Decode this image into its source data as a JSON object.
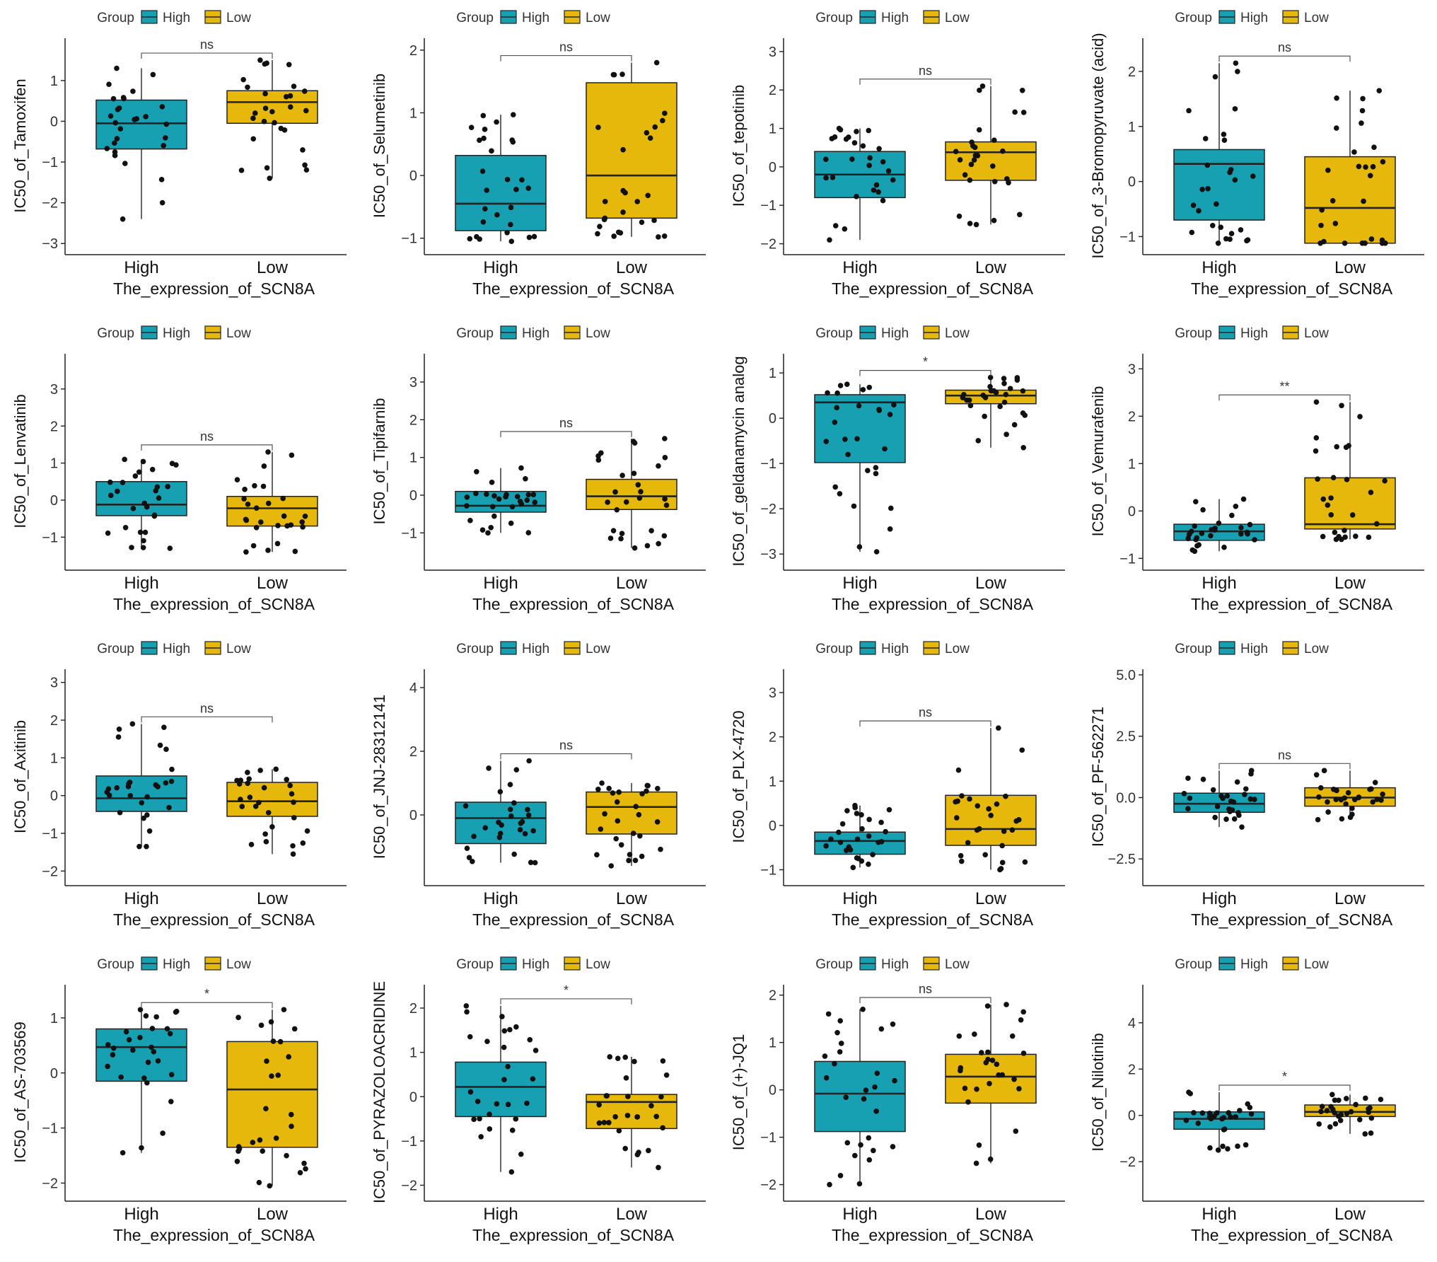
{
  "figure": {
    "legend_title": "Group",
    "groups": [
      "High",
      "Low"
    ],
    "colors": {
      "High": "#17a0b2",
      "Low": "#e5b80b"
    },
    "xlabel": "The_expression_of_SCN8A"
  },
  "chart_data": [
    {
      "type": "box",
      "title": "",
      "ylabel": "IC50_of_Tamoxifen",
      "ylim": [
        -3.1,
        1.9
      ],
      "ticks": [
        "-3",
        "-2",
        "-1",
        "0",
        "1"
      ],
      "sig": "ns",
      "boxes": [
        {
          "group": "High",
          "min": -2.4,
          "q1": -0.68,
          "median": -0.05,
          "q3": 0.52,
          "max": 1.3
        },
        {
          "group": "Low",
          "min": -1.4,
          "q1": -0.05,
          "median": 0.47,
          "q3": 0.75,
          "max": 1.5
        }
      ]
    },
    {
      "type": "box",
      "title": "",
      "ylabel": "IC50_of_Selumetinib",
      "ylim": [
        -1.15,
        2.1
      ],
      "ticks": [
        "-1",
        "0",
        "1",
        "2"
      ],
      "sig": "ns",
      "boxes": [
        {
          "group": "High",
          "min": -1.05,
          "q1": -0.88,
          "median": -0.45,
          "q3": 0.32,
          "max": 0.97
        },
        {
          "group": "Low",
          "min": -0.98,
          "q1": -0.68,
          "median": 0.0,
          "q3": 1.48,
          "max": 1.8
        }
      ]
    },
    {
      "type": "box",
      "title": "",
      "ylabel": "IC50_of_tepotinib",
      "ylim": [
        -2.1,
        3.2
      ],
      "ticks": [
        "-2",
        "-1",
        "0",
        "1",
        "2",
        "3"
      ],
      "sig": "ns",
      "boxes": [
        {
          "group": "High",
          "min": -1.9,
          "q1": -0.8,
          "median": -0.2,
          "q3": 0.4,
          "max": 1.0
        },
        {
          "group": "Low",
          "min": -1.5,
          "q1": -0.35,
          "median": 0.38,
          "q3": 0.65,
          "max": 2.1
        }
      ]
    },
    {
      "type": "box",
      "title": "",
      "ylabel": "IC50_of_3-Bromopyruvate (acid)",
      "ylim": [
        -1.2,
        2.5
      ],
      "ticks": [
        "-1",
        "0",
        "1",
        "2"
      ],
      "sig": "ns",
      "boxes": [
        {
          "group": "High",
          "min": -1.12,
          "q1": -0.7,
          "median": 0.32,
          "q3": 0.58,
          "max": 2.15
        },
        {
          "group": "Low",
          "min": -1.12,
          "q1": -1.12,
          "median": -0.48,
          "q3": 0.45,
          "max": 1.65
        }
      ]
    },
    {
      "type": "box",
      "title": "",
      "ylabel": "IC50_of_Lenvatinib",
      "ylim": [
        -1.7,
        3.8
      ],
      "ticks": [
        "-1",
        "0",
        "1",
        "2",
        "3"
      ],
      "sig": "ns",
      "boxes": [
        {
          "group": "High",
          "min": -1.3,
          "q1": -0.42,
          "median": -0.12,
          "q3": 0.5,
          "max": 1.1
        },
        {
          "group": "Low",
          "min": -1.4,
          "q1": -0.7,
          "median": -0.22,
          "q3": 0.1,
          "max": 1.3
        }
      ]
    },
    {
      "type": "box",
      "title": "",
      "ylabel": "IC50_of_Tipifarnib",
      "ylim": [
        -1.8,
        3.6
      ],
      "ticks": [
        "-1",
        "0",
        "1",
        "2",
        "3"
      ],
      "sig": "ns",
      "boxes": [
        {
          "group": "High",
          "min": -1.0,
          "q1": -0.45,
          "median": -0.28,
          "q3": 0.1,
          "max": 0.72
        },
        {
          "group": "Low",
          "min": -1.4,
          "q1": -0.38,
          "median": -0.03,
          "q3": 0.42,
          "max": 1.5
        }
      ]
    },
    {
      "type": "box",
      "title": "",
      "ylabel": "IC50_of_geldanamycin analog",
      "ylim": [
        -3.2,
        1.3
      ],
      "ticks": [
        "-3",
        "-2",
        "-1",
        "0",
        "1"
      ],
      "sig": "*",
      "boxes": [
        {
          "group": "High",
          "min": -2.95,
          "q1": -0.98,
          "median": 0.35,
          "q3": 0.52,
          "max": 0.75
        },
        {
          "group": "Low",
          "min": -0.65,
          "q1": 0.32,
          "median": 0.5,
          "q3": 0.62,
          "max": 0.9
        }
      ]
    },
    {
      "type": "box",
      "title": "",
      "ylabel": "IC50_of_Vemurafenib",
      "ylim": [
        -1.1,
        3.2
      ],
      "ticks": [
        "-1",
        "0",
        "1",
        "2",
        "3"
      ],
      "sig": "**",
      "boxes": [
        {
          "group": "High",
          "min": -0.85,
          "q1": -0.62,
          "median": -0.43,
          "q3": -0.28,
          "max": 0.25
        },
        {
          "group": "Low",
          "min": -0.6,
          "q1": -0.38,
          "median": -0.28,
          "q3": 0.7,
          "max": 2.3
        }
      ]
    },
    {
      "type": "box",
      "title": "",
      "ylabel": "IC50_of_Axitinib",
      "ylim": [
        -2.2,
        3.2
      ],
      "ticks": [
        "-2",
        "-1",
        "0",
        "1",
        "2",
        "3"
      ],
      "sig": "ns",
      "boxes": [
        {
          "group": "High",
          "min": -1.35,
          "q1": -0.42,
          "median": -0.07,
          "q3": 0.52,
          "max": 1.9
        },
        {
          "group": "Low",
          "min": -1.55,
          "q1": -0.55,
          "median": -0.15,
          "q3": 0.35,
          "max": 0.7
        }
      ]
    },
    {
      "type": "box",
      "title": "",
      "ylabel": "IC50_of_JNJ-28312141",
      "ylim": [
        -2.0,
        4.4
      ],
      "ticks": [
        "0",
        "2",
        "4"
      ],
      "sig": "ns",
      "boxes": [
        {
          "group": "High",
          "min": -1.5,
          "q1": -0.9,
          "median": -0.1,
          "q3": 0.4,
          "max": 1.7
        },
        {
          "group": "Low",
          "min": -1.6,
          "q1": -0.6,
          "median": 0.25,
          "q3": 0.72,
          "max": 1.0
        }
      ]
    },
    {
      "type": "box",
      "title": "",
      "ylabel": "IC50_of_PLX-4720",
      "ylim": [
        -1.2,
        3.4
      ],
      "ticks": [
        "-1",
        "0",
        "1",
        "2",
        "3"
      ],
      "sig": "ns",
      "boxes": [
        {
          "group": "High",
          "min": -0.95,
          "q1": -0.65,
          "median": -0.35,
          "q3": -0.15,
          "max": 0.45
        },
        {
          "group": "Low",
          "min": -1.0,
          "q1": -0.45,
          "median": -0.08,
          "q3": 0.68,
          "max": 2.2
        }
      ]
    },
    {
      "type": "box",
      "title": "",
      "ylabel": "IC50_of_PF-562271",
      "ylim": [
        -3.3,
        5.0
      ],
      "ticks": [
        "-2.5",
        "0.0",
        "2.5",
        "5.0"
      ],
      "sig": "ns",
      "boxes": [
        {
          "group": "High",
          "min": -1.2,
          "q1": -0.6,
          "median": -0.25,
          "q3": 0.18,
          "max": 1.1
        },
        {
          "group": "Low",
          "min": -0.9,
          "q1": -0.35,
          "median": 0.0,
          "q3": 0.4,
          "max": 1.1
        }
      ]
    },
    {
      "type": "box",
      "title": "",
      "ylabel": "IC50_of_AS-703569",
      "ylim": [
        -2.2,
        1.5
      ],
      "ticks": [
        "-2",
        "-1",
        "0",
        "1"
      ],
      "sig": "*",
      "boxes": [
        {
          "group": "High",
          "min": -1.45,
          "q1": -0.15,
          "median": 0.47,
          "q3": 0.8,
          "max": 1.15
        },
        {
          "group": "Low",
          "min": -2.05,
          "q1": -1.35,
          "median": -0.3,
          "q3": 0.57,
          "max": 1.15
        }
      ]
    },
    {
      "type": "box",
      "title": "",
      "ylabel": "IC50_of_PYRAZOLOACRIDINE",
      "ylim": [
        -2.2,
        2.4
      ],
      "ticks": [
        "-2",
        "-1",
        "0",
        "1",
        "2"
      ],
      "sig": "*",
      "boxes": [
        {
          "group": "High",
          "min": -1.7,
          "q1": -0.45,
          "median": 0.22,
          "q3": 0.78,
          "max": 2.05
        },
        {
          "group": "Low",
          "min": -1.6,
          "q1": -0.72,
          "median": -0.12,
          "q3": 0.05,
          "max": 0.9
        }
      ]
    },
    {
      "type": "box",
      "title": "",
      "ylabel": "IC50_of_(+)-JQ1",
      "ylim": [
        -2.2,
        2.1
      ],
      "ticks": [
        "-2",
        "-1",
        "0",
        "1",
        "2"
      ],
      "sig": "ns",
      "boxes": [
        {
          "group": "High",
          "min": -2.0,
          "q1": -0.88,
          "median": -0.08,
          "q3": 0.6,
          "max": 1.7
        },
        {
          "group": "Low",
          "min": -1.55,
          "q1": -0.28,
          "median": 0.28,
          "q3": 0.75,
          "max": 1.8
        }
      ]
    },
    {
      "type": "box",
      "title": "",
      "ylabel": "IC50_of_Nilotinib",
      "ylim": [
        -3.4,
        5.4
      ],
      "ticks": [
        "-2",
        "0",
        "2",
        "4"
      ],
      "sig": "*",
      "boxes": [
        {
          "group": "High",
          "min": -1.5,
          "q1": -0.6,
          "median": -0.15,
          "q3": 0.15,
          "max": 1.0
        },
        {
          "group": "Low",
          "min": -0.8,
          "q1": -0.05,
          "median": 0.15,
          "q3": 0.45,
          "max": 0.9
        }
      ]
    }
  ]
}
